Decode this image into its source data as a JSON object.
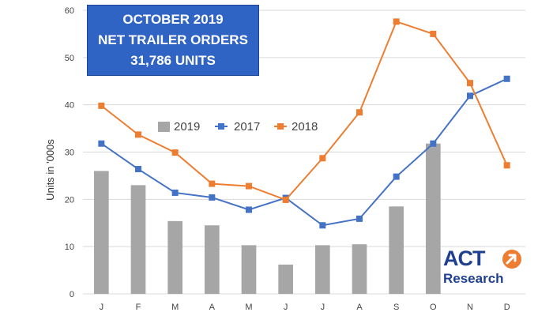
{
  "title_box": {
    "line1": "OCTOBER 2019",
    "line2": "NET TRAILER ORDERS",
    "line3": "31,786 UNITS"
  },
  "logo": {
    "top": "ACT",
    "bottom": "Research"
  },
  "chart_data": {
    "type": "bar",
    "categories": [
      "J",
      "F",
      "M",
      "A",
      "M",
      "J",
      "J",
      "A",
      "S",
      "O",
      "N",
      "D"
    ],
    "ylabel": "Units in '000s",
    "ylim": [
      0,
      60
    ],
    "yticks": [
      0,
      10,
      20,
      30,
      40,
      50,
      60
    ],
    "grid": true,
    "legend_position": "center",
    "series": [
      {
        "name": "2019",
        "type": "bar",
        "color": "#a6a6a6",
        "values": [
          26,
          23,
          15.4,
          14.5,
          10.3,
          6.2,
          10.3,
          10.5,
          18.5,
          31.8,
          null,
          null
        ]
      },
      {
        "name": "2017",
        "type": "line",
        "color": "#4472c4",
        "values": [
          31.8,
          26.4,
          21.4,
          20.4,
          17.8,
          20.3,
          14.5,
          15.9,
          24.8,
          31.8,
          41.9,
          45.5
        ]
      },
      {
        "name": "2018",
        "type": "line",
        "color": "#ed7d31",
        "values": [
          39.8,
          33.7,
          29.9,
          23.3,
          22.8,
          19.9,
          28.7,
          38.4,
          57.6,
          55,
          44.6,
          27.2
        ]
      }
    ]
  }
}
